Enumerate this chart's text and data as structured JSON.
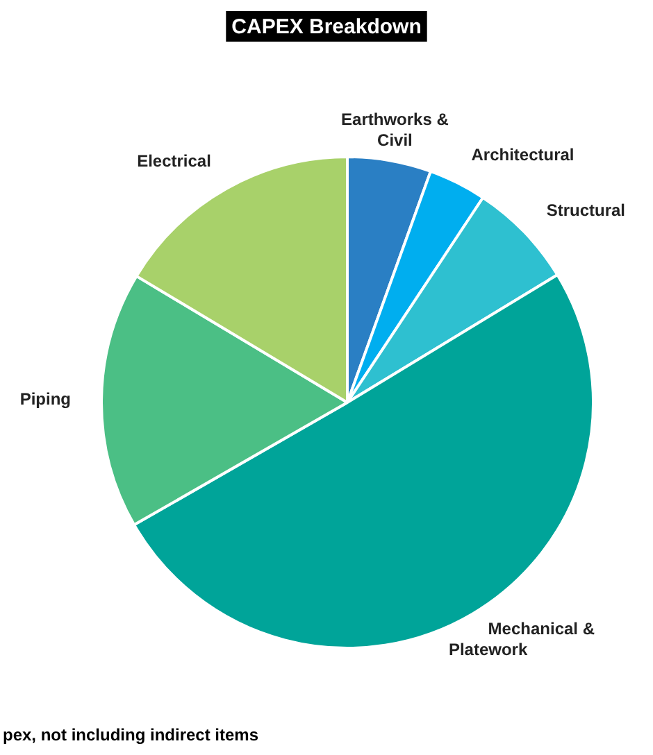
{
  "chart_data": {
    "type": "pie",
    "title": "CAPEX Breakdown",
    "categories": [
      "Earthworks & Civil",
      "Architectural",
      "Structural",
      "Mechanical & Platework",
      "Piping",
      "Electrical"
    ],
    "values": [
      5.5,
      3.8,
      7,
      50.4,
      16.9,
      16.4
    ],
    "colors": [
      "#2a7fc4",
      "#00aeef",
      "#2ec0d0",
      "#00a499",
      "#4bbf85",
      "#a8d16a"
    ],
    "legend": false,
    "annotations": [
      "pex, not including indirect items"
    ]
  }
}
